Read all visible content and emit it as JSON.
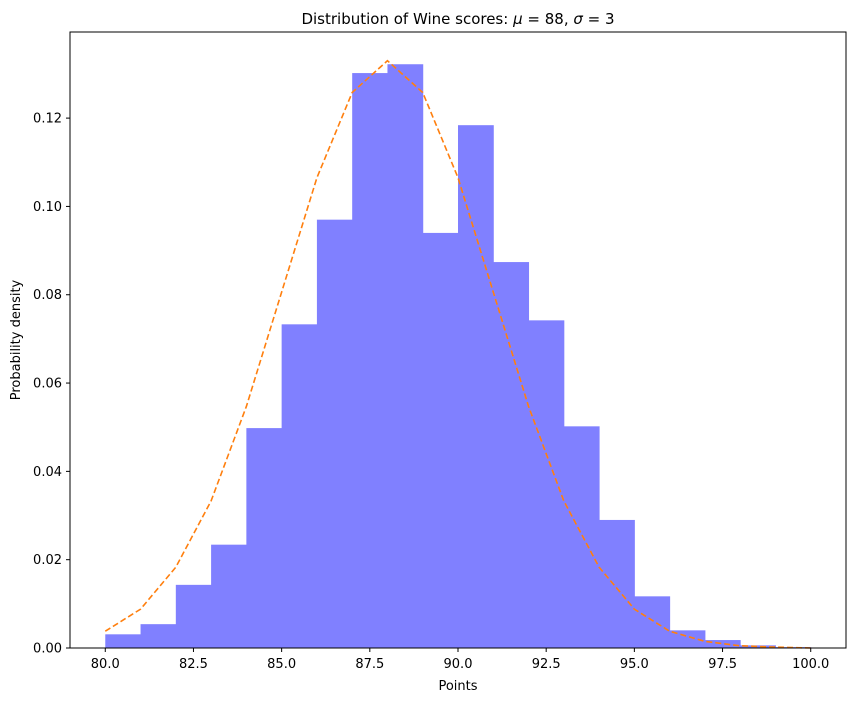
{
  "chart_data": {
    "type": "bar",
    "title_text": "Distribution of Wine scores:  ",
    "title_math": [
      {
        "sym": "μ",
        "eq": " = 88, "
      },
      {
        "sym": "σ",
        "eq": " = 3"
      }
    ],
    "xlabel": "Points",
    "ylabel": "Probability density",
    "xlim": [
      79,
      101
    ],
    "ylim": [
      0,
      0.1395
    ],
    "xticks": [
      80.0,
      82.5,
      85.0,
      87.5,
      90.0,
      92.5,
      95.0,
      97.5,
      100.0
    ],
    "xtick_labels": [
      "80.0",
      "82.5",
      "85.0",
      "87.5",
      "90.0",
      "92.5",
      "95.0",
      "97.5",
      "100.0"
    ],
    "yticks": [
      0.0,
      0.02,
      0.04,
      0.06,
      0.08,
      0.1,
      0.12
    ],
    "ytick_labels": [
      "0.00",
      "0.02",
      "0.04",
      "0.06",
      "0.08",
      "0.10",
      "0.12"
    ],
    "histogram": {
      "name": "histogram",
      "color": "#8080ff",
      "bin_edges": [
        80,
        81,
        82,
        83,
        84,
        85,
        86,
        87,
        88,
        89,
        90,
        91,
        92,
        93,
        94,
        95,
        96,
        97,
        98,
        99,
        100
      ],
      "values": [
        0.0031,
        0.0054,
        0.0143,
        0.0234,
        0.0498,
        0.0733,
        0.097,
        0.1302,
        0.1322,
        0.094,
        0.1184,
        0.0874,
        0.0742,
        0.0502,
        0.029,
        0.0117,
        0.004,
        0.0018,
        0.0006,
        0.0002
      ]
    },
    "normal_curve": {
      "name": "normal pdf",
      "color": "#ff7f0e",
      "style": "dashed",
      "x": [
        80,
        81,
        82,
        83,
        84,
        85,
        86,
        87,
        88,
        89,
        90,
        91,
        92,
        93,
        94,
        95,
        96,
        97,
        98,
        99,
        100
      ],
      "y": [
        0.0038,
        0.0088,
        0.0183,
        0.0333,
        0.0547,
        0.0806,
        0.1065,
        0.1258,
        0.133,
        0.1258,
        0.1065,
        0.0806,
        0.0547,
        0.0333,
        0.0183,
        0.0088,
        0.0038,
        0.0015,
        0.0005,
        0.0002,
        0.0
      ]
    }
  }
}
